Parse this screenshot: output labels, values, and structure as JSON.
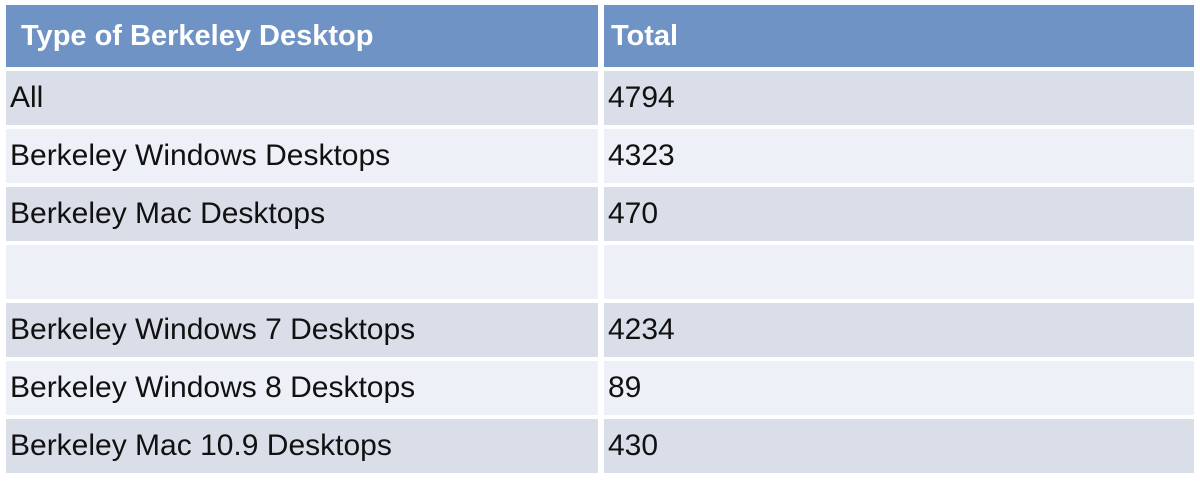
{
  "colors": {
    "header_bg": "#7093C6",
    "header_text": "#FFFFFF",
    "row_band_dark": "#D9DEE9",
    "row_band_light": "#EDF0F6",
    "body_text": "#111111",
    "gutter": "#FFFFFF"
  },
  "chart_data": {
    "type": "table",
    "title": "",
    "columns": [
      "Type of Berkeley Desktop",
      "Total"
    ],
    "rows": [
      {
        "type": "All",
        "total": "4794"
      },
      {
        "type": "Berkeley Windows Desktops",
        "total": "4323"
      },
      {
        "type": "Berkeley Mac Desktops",
        "total": "470"
      },
      {
        "type": "",
        "total": ""
      },
      {
        "type": "Berkeley Windows 7 Desktops",
        "total": "4234"
      },
      {
        "type": "Berkeley Windows 8 Desktops",
        "total": "89"
      },
      {
        "type": "Berkeley Mac 10.9 Desktops",
        "total": "430"
      }
    ],
    "layout_hints": {
      "banding": [
        "dark",
        "light",
        "dark",
        "light",
        "dark",
        "light",
        "dark"
      ],
      "header_style": "solid blue, bold white text",
      "grid": "white gutters between cells"
    }
  }
}
